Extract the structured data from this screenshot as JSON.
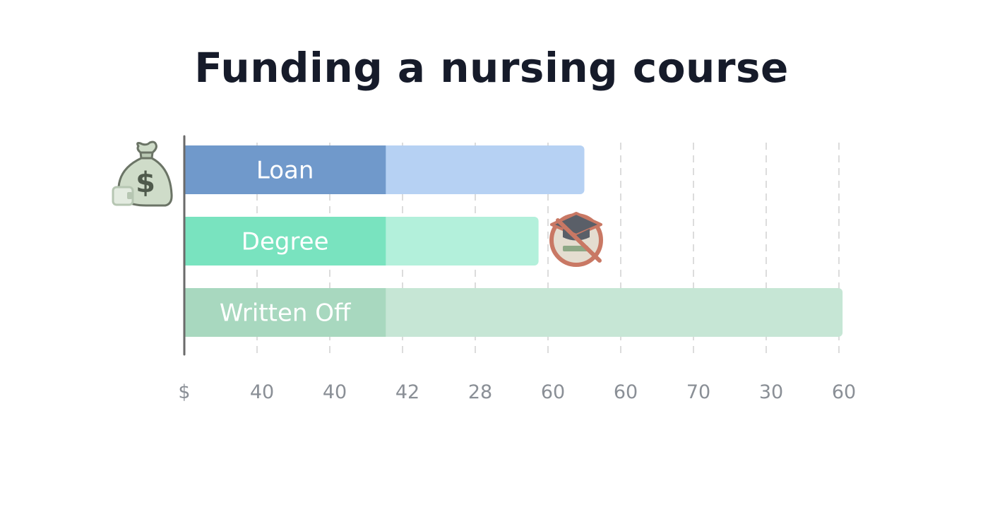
{
  "chart_data": {
    "type": "bar",
    "orientation": "horizontal",
    "title": "Funding a nursing course",
    "xlabel": "",
    "ylabel": "",
    "x_tick_labels": [
      "$",
      "40",
      "40",
      "42",
      "28",
      "60",
      "60",
      "70",
      "30",
      "60"
    ],
    "grid": true,
    "grid_style": "dashed vertical",
    "bars": [
      {
        "label": "Loan",
        "value": 5.5,
        "color_dark": "#7099cb",
        "color_light": "#b6d1f3"
      },
      {
        "label": "Degree",
        "value": 4.87,
        "color_dark": "#79e3bf",
        "color_light": "#b3f0db"
      },
      {
        "label": "Written Off",
        "value": 9.05,
        "color_dark": "#a8d8bf",
        "color_light": "#c6e6d5"
      }
    ],
    "dark_segment_value": 2.77,
    "xlim": [
      0,
      9.05
    ],
    "icons": [
      "money-bag-icon",
      "no-graduation-cap-icon"
    ],
    "icon_colors": {
      "money_bag": "#cfdcc9",
      "money_bag_stroke": "#6b7466",
      "prohibit": "#c97864",
      "cap": "#5a5f68"
    },
    "axis_color": "#6a6a6a",
    "grid_color": "#dcdcdc"
  }
}
